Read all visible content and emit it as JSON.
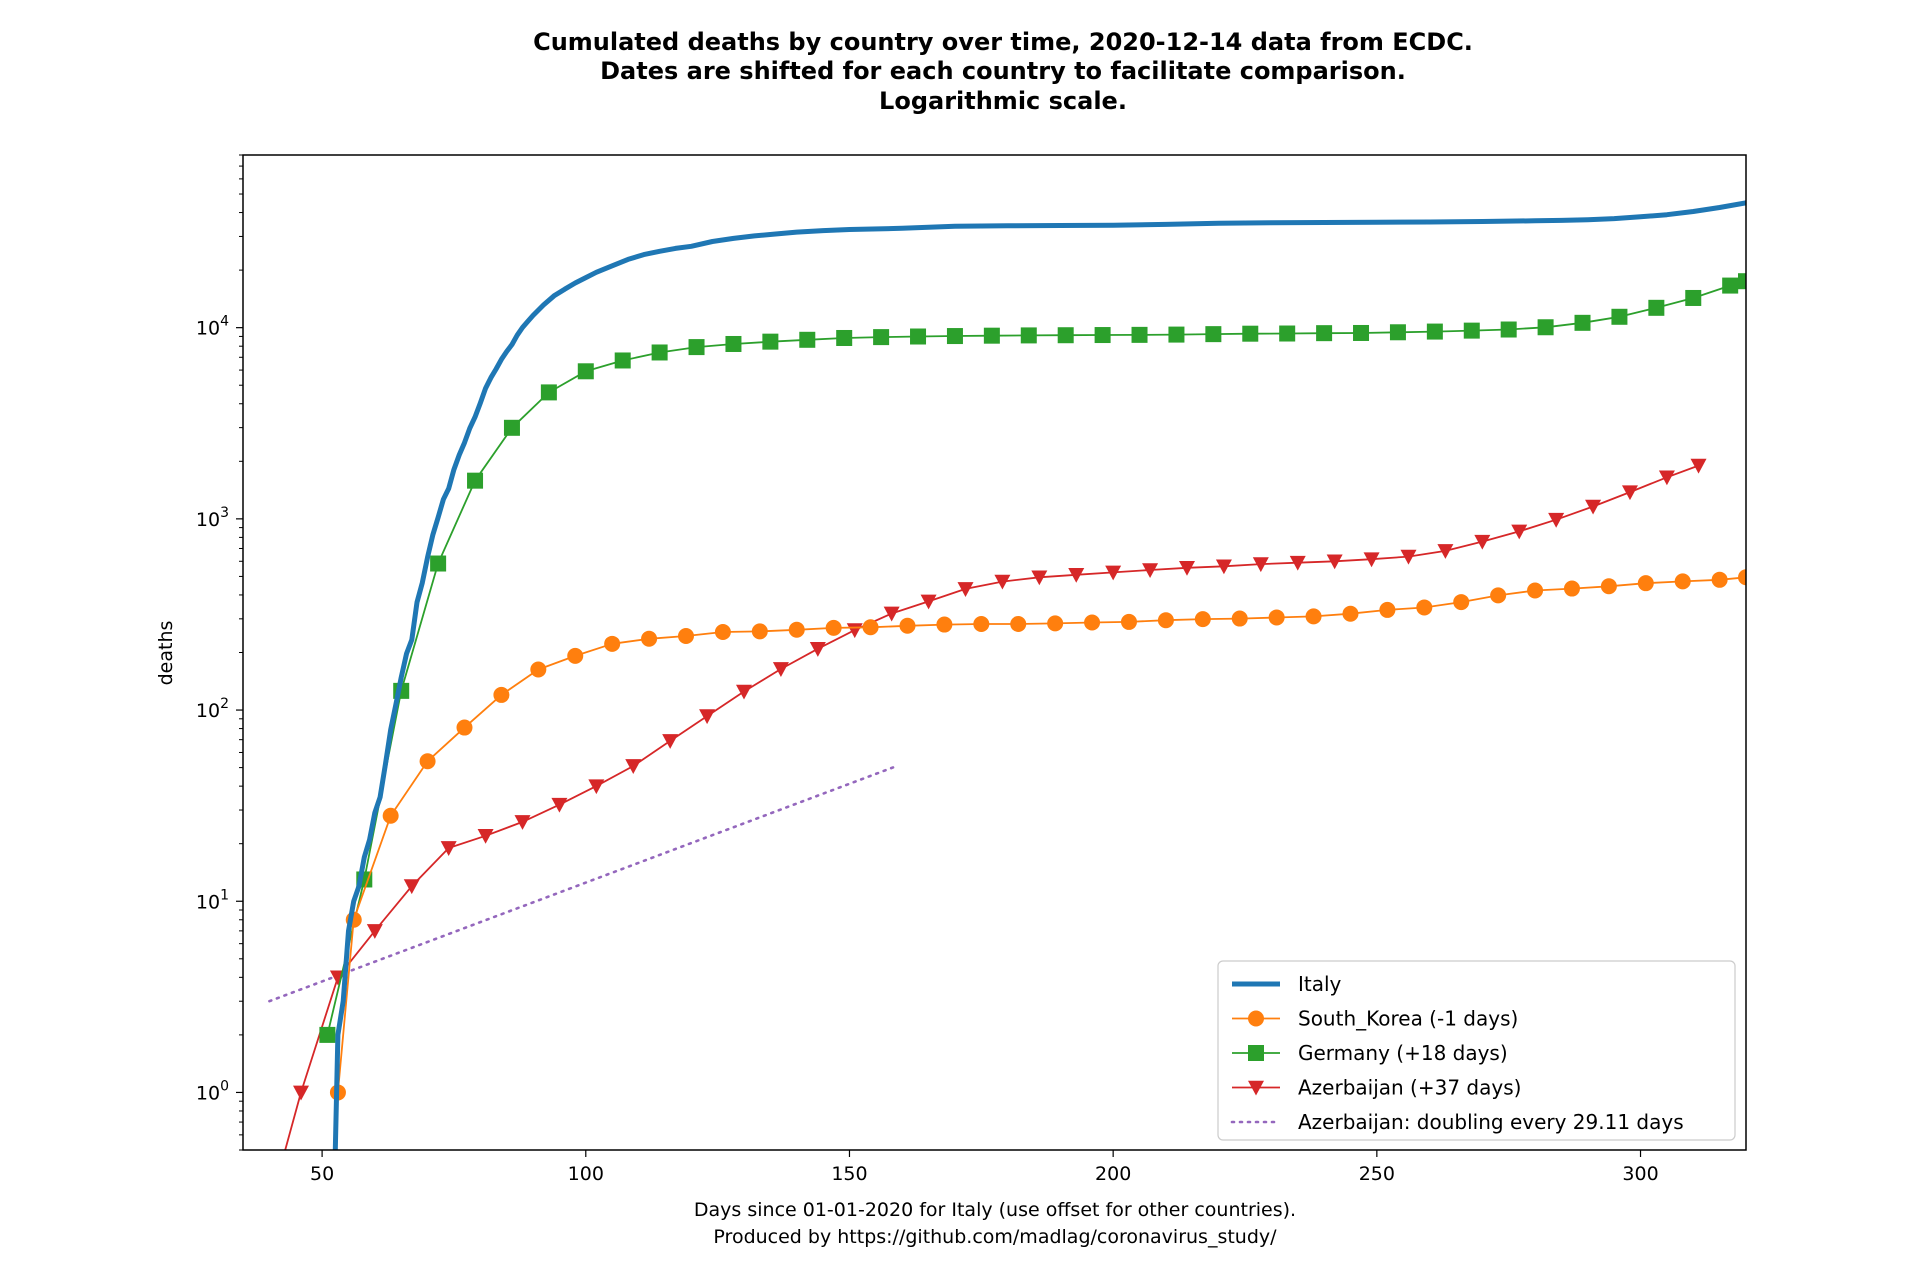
{
  "chart_data": {
    "type": "line",
    "title": [
      "Cumulated deaths by country over time, 2020-12-14 data from ECDC.",
      "Dates are shifted for each country to facilitate comparison.",
      "Logarithmic scale."
    ],
    "xlabel": [
      "Days since 01-01-2020 for Italy (use offset for other countries).",
      "Produced by https://github.com/madlag/coronavirus_study/"
    ],
    "ylabel": "deaths",
    "y_scale": "log",
    "xlim": [
      35,
      320
    ],
    "ylim": [
      0.5,
      80000
    ],
    "x_ticks": [
      50,
      100,
      150,
      200,
      250,
      300
    ],
    "y_ticks": [
      {
        "value": 1,
        "base": "10",
        "exp": "0"
      },
      {
        "value": 10,
        "base": "10",
        "exp": "1"
      },
      {
        "value": 100,
        "base": "10",
        "exp": "2"
      },
      {
        "value": 1000,
        "base": "10",
        "exp": "3"
      },
      {
        "value": 10000,
        "base": "10",
        "exp": "4"
      }
    ],
    "grid": false,
    "legend_position": "lower-right",
    "series": [
      {
        "name": "Italy",
        "color": "#1f77b4",
        "marker": "none",
        "x": [
          52.5,
          53,
          54,
          55,
          56,
          57,
          58,
          59,
          60,
          61,
          62,
          63,
          64,
          65,
          66,
          67,
          68,
          69,
          70,
          71,
          72,
          73,
          74,
          75,
          76,
          77,
          78,
          79,
          80,
          81,
          82,
          83,
          84,
          85,
          86,
          87,
          88,
          89,
          90,
          92,
          94,
          96,
          98,
          100,
          102,
          105,
          108,
          111,
          114,
          117,
          120,
          124,
          128,
          132,
          136,
          140,
          145,
          150,
          160,
          170,
          180,
          190,
          200,
          210,
          220,
          230,
          240,
          250,
          260,
          270,
          280,
          285,
          290,
          295,
          300,
          305,
          310,
          315,
          320
        ],
        "values": [
          0.5,
          2,
          3,
          7,
          10,
          12,
          17,
          21,
          29,
          35,
          52,
          79,
          107,
          148,
          197,
          233,
          366,
          463,
          631,
          827,
          1016,
          1266,
          1441,
          1809,
          2158,
          2503,
          2978,
          3405,
          4032,
          4825,
          5476,
          6077,
          6820,
          7503,
          8165,
          9134,
          10023,
          10779,
          11591,
          13155,
          14681,
          15887,
          17127,
          18279,
          19468,
          21067,
          22745,
          24114,
          25085,
          25969,
          26644,
          28236,
          29315,
          30201,
          30911,
          31610,
          32169,
          32616,
          33072,
          33900,
          34120,
          34240,
          34350,
          34700,
          35200,
          35400,
          35500,
          35600,
          35700,
          35900,
          36200,
          36400,
          36700,
          37200,
          38000,
          39000,
          40500,
          42500,
          45000
        ]
      },
      {
        "name": "South_Korea (-1 days)",
        "color": "#ff7f0e",
        "marker": "circle",
        "x": [
          53,
          56,
          63,
          70,
          77,
          84,
          91,
          98,
          105,
          112,
          119,
          126,
          133,
          140,
          147,
          154,
          161,
          168,
          175,
          182,
          189,
          196,
          203,
          210,
          217,
          224,
          231,
          238,
          245,
          252,
          259,
          266,
          273,
          280,
          287,
          294,
          301,
          308,
          315,
          320
        ],
        "values": [
          1,
          8,
          28,
          54,
          81,
          120,
          163,
          192,
          222,
          236,
          244,
          256,
          258,
          263,
          269,
          271,
          276,
          280,
          282,
          282,
          284,
          287,
          289,
          295,
          299,
          301,
          305,
          309,
          319,
          334,
          344,
          367,
          398,
          422,
          432,
          444,
          461,
          471,
          480,
          495
        ]
      },
      {
        "name": "Germany (+18 days)",
        "color": "#2ca02c",
        "marker": "square",
        "x": [
          51,
          58,
          65,
          72,
          79,
          86,
          93,
          100,
          107,
          114,
          121,
          128,
          135,
          142,
          149,
          156,
          163,
          170,
          177,
          184,
          191,
          198,
          205,
          212,
          219,
          226,
          233,
          240,
          247,
          254,
          261,
          268,
          275,
          282,
          289,
          296,
          303,
          310,
          317,
          320
        ],
        "values": [
          2,
          13,
          126,
          584,
          1584,
          2994,
          4586,
          5913,
          6736,
          7417,
          7914,
          8216,
          8450,
          8641,
          8831,
          8925,
          8990,
          9040,
          9080,
          9110,
          9130,
          9150,
          9170,
          9200,
          9250,
          9300,
          9320,
          9360,
          9380,
          9460,
          9540,
          9650,
          9780,
          10050,
          10600,
          11400,
          12700,
          14300,
          16600,
          17500
        ]
      },
      {
        "name": "Azerbaijan (+37 days)",
        "color": "#d62728",
        "marker": "triangle-down",
        "x": [
          43,
          46,
          53,
          60,
          67,
          74,
          81,
          88,
          95,
          102,
          109,
          116,
          123,
          130,
          137,
          144,
          151,
          158,
          165,
          172,
          179,
          186,
          193,
          200,
          207,
          214,
          221,
          228,
          235,
          242,
          249,
          256,
          263,
          270,
          277,
          284,
          291,
          298,
          305,
          311
        ],
        "values": [
          0.5,
          1,
          4,
          7,
          12,
          19,
          22,
          26,
          32,
          40,
          51,
          69,
          93,
          125,
          164,
          209,
          262,
          320,
          370,
          430,
          470,
          495,
          510,
          525,
          540,
          555,
          565,
          580,
          590,
          600,
          615,
          635,
          680,
          760,
          860,
          990,
          1160,
          1380,
          1650,
          1900
        ]
      },
      {
        "name": "Azerbaijan: doubling every 29.11 days",
        "color": "#9467bd",
        "marker": "none",
        "dashed": true,
        "x": [
          40,
          159
        ],
        "values": [
          3,
          51
        ]
      }
    ]
  }
}
